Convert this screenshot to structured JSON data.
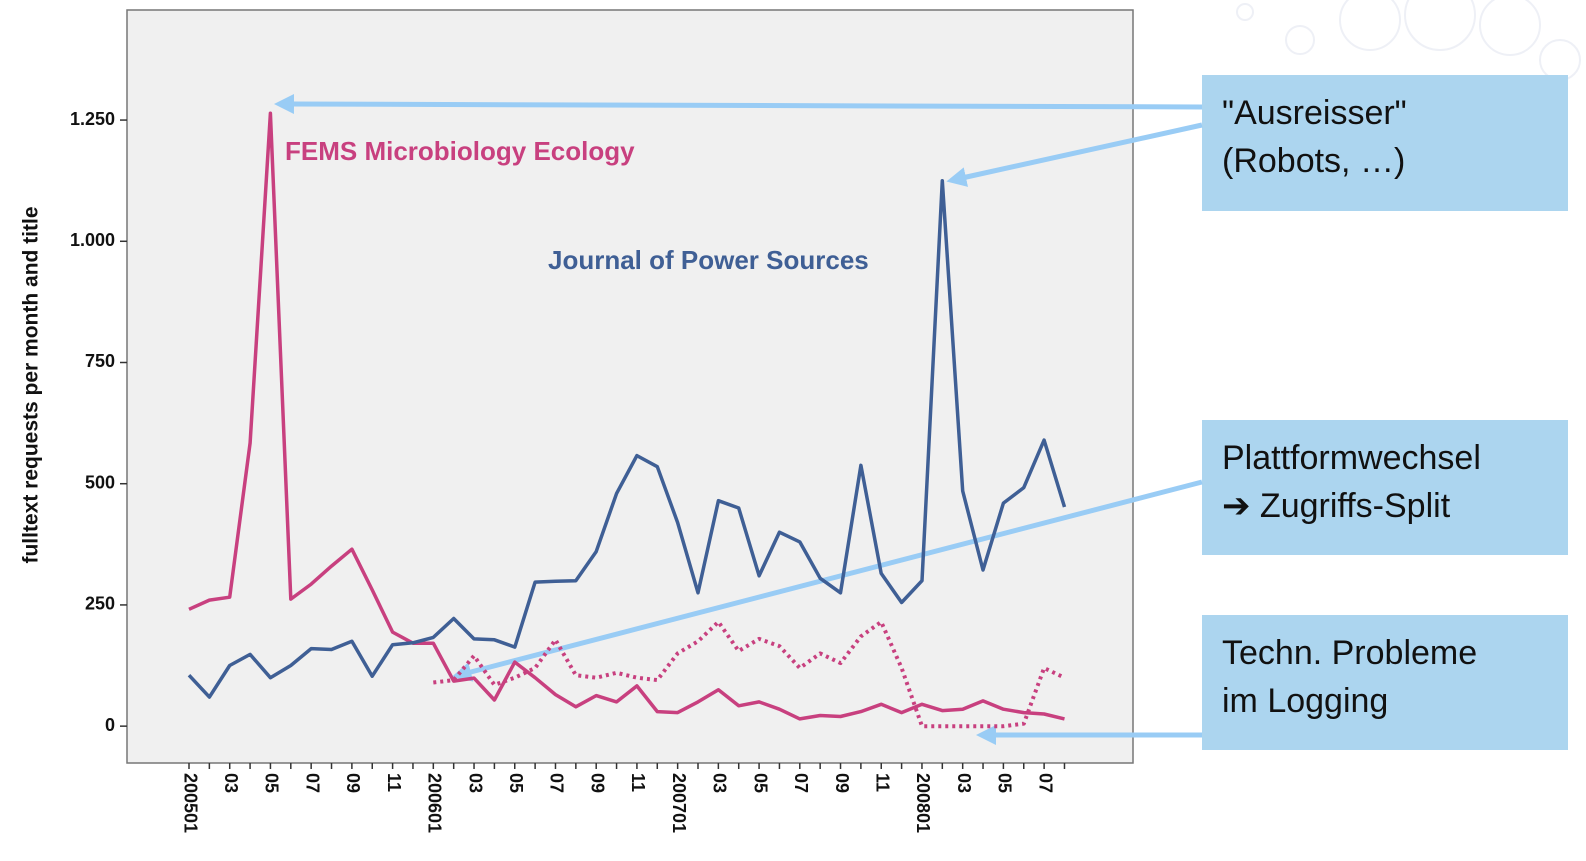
{
  "chart_data": {
    "type": "line",
    "ylabel": "fulltext requests per month and title",
    "categories": [
      "200501",
      null,
      "03",
      null,
      "05",
      null,
      "07",
      null,
      "09",
      null,
      "11",
      null,
      "200601",
      null,
      "03",
      null,
      "05",
      null,
      "07",
      null,
      "09",
      null,
      "11",
      null,
      "200701",
      null,
      "03",
      null,
      "05",
      null,
      "07",
      null,
      "09",
      null,
      "11",
      null,
      "200801",
      null,
      "03",
      null,
      "05",
      null,
      "07",
      null
    ],
    "ylim": [
      -76,
      1477
    ],
    "yticks": [
      0,
      250,
      500,
      750,
      {
        "value": 1000,
        "label": "1.000"
      },
      {
        "value": 1250,
        "label": "1.250"
      }
    ],
    "grid": false,
    "series": [
      {
        "name": "FEMS Microbiology Ecology",
        "color": "#c8407f",
        "dashed": false,
        "values": [
          241,
          260,
          266,
          584,
          1264,
          262,
          293,
          330,
          365,
          281,
          194,
          171,
          171,
          93,
          99,
          54,
          132,
          100,
          65,
          40,
          63,
          50,
          83,
          30,
          28,
          50,
          75,
          42,
          50,
          35,
          15,
          22,
          20,
          30,
          45,
          28,
          45,
          32,
          35,
          52,
          35,
          28,
          25,
          15
        ]
      },
      {
        "name": "Journal of Power Sources",
        "color": "#3f5f95",
        "dashed": false,
        "values": [
          105,
          60,
          125,
          148,
          100,
          125,
          160,
          158,
          175,
          103,
          168,
          172,
          183,
          222,
          180,
          178,
          163,
          297,
          299,
          300,
          360,
          480,
          558,
          535,
          420,
          275,
          465,
          450,
          310,
          400,
          380,
          305,
          275,
          538,
          315,
          255,
          300,
          1125,
          485,
          322,
          460,
          492,
          590,
          452
        ]
      },
      {
        "color": "#c8407f",
        "dashed": true,
        "values": [
          null,
          null,
          null,
          null,
          null,
          null,
          null,
          null,
          null,
          null,
          null,
          null,
          90,
          95,
          145,
          85,
          100,
          120,
          178,
          105,
          100,
          110,
          100,
          95,
          150,
          175,
          215,
          155,
          180,
          165,
          120,
          150,
          130,
          185,
          215,
          120,
          0,
          0,
          0,
          0,
          0,
          5,
          120,
          100
        ]
      }
    ]
  },
  "annotations": [
    {
      "lines": [
        "\"Ausreisser\"",
        "(Robots, …)"
      ]
    },
    {
      "lines": [
        "Plattformwechsel",
        "➔ Zugriffs-Split"
      ]
    },
    {
      "lines": [
        "Techn. Probleme",
        "im Logging"
      ]
    }
  ]
}
